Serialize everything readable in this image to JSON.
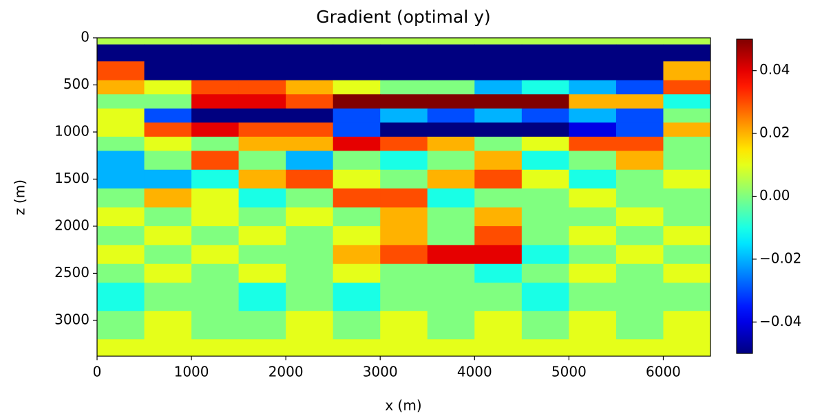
{
  "chart_data": {
    "type": "heatmap",
    "title": "Gradient (optimal y)",
    "xlabel": "x (m)",
    "ylabel": "z (m)",
    "colormap": "jet",
    "xlim": [
      0,
      6500
    ],
    "ylim": [
      3380,
      0
    ],
    "xticks": [
      0,
      1000,
      2000,
      3000,
      4000,
      5000,
      6000
    ],
    "yticks": [
      0,
      500,
      1000,
      1500,
      2000,
      2500,
      3000
    ],
    "x_edges": [
      0,
      500,
      1000,
      1500,
      2000,
      2500,
      3000,
      3500,
      4000,
      4500,
      5000,
      5500,
      6000,
      6500
    ],
    "z_edges": [
      0,
      70,
      250,
      450,
      600,
      750,
      900,
      1050,
      1200,
      1400,
      1600,
      1800,
      2000,
      2200,
      2400,
      2600,
      2900,
      3200,
      3380
    ],
    "values": [
      [
        0.005,
        0.005,
        0.005,
        0.005,
        0.005,
        0.005,
        0.005,
        0.005,
        0.005,
        0.005,
        0.005,
        0.005,
        0.005
      ],
      [
        -0.05,
        -0.05,
        -0.05,
        -0.05,
        -0.05,
        -0.05,
        -0.05,
        -0.05,
        -0.05,
        -0.05,
        -0.05,
        -0.05,
        -0.05
      ],
      [
        0.03,
        -0.05,
        -0.05,
        -0.05,
        -0.05,
        -0.05,
        -0.05,
        -0.05,
        -0.05,
        -0.05,
        -0.05,
        -0.05,
        0.02
      ],
      [
        0.02,
        0.01,
        0.03,
        0.03,
        0.02,
        0.01,
        0,
        0,
        -0.02,
        -0.01,
        -0.02,
        -0.03,
        0.03
      ],
      [
        0,
        0,
        0.04,
        0.04,
        0.03,
        0.05,
        0.05,
        0.05,
        0.05,
        0.05,
        0.02,
        0.02,
        -0.01
      ],
      [
        0.01,
        -0.03,
        -0.05,
        -0.05,
        -0.05,
        -0.03,
        -0.02,
        -0.03,
        -0.02,
        -0.03,
        -0.02,
        -0.03,
        0
      ],
      [
        0.01,
        0.03,
        0.04,
        0.03,
        0.03,
        -0.03,
        -0.05,
        -0.05,
        -0.05,
        -0.05,
        -0.04,
        -0.03,
        0.02
      ],
      [
        0,
        0.01,
        0,
        0.02,
        0.02,
        0.04,
        0.03,
        0.02,
        0,
        0.01,
        0.03,
        0.03,
        0
      ],
      [
        -0.02,
        0,
        0.03,
        0,
        -0.02,
        0,
        -0.01,
        0,
        0.02,
        -0.01,
        0,
        0.02,
        0
      ],
      [
        -0.02,
        -0.02,
        -0.01,
        0.02,
        0.03,
        0.01,
        0,
        0.02,
        0.03,
        0.01,
        -0.01,
        0,
        0.01
      ],
      [
        0,
        0.02,
        0.01,
        -0.01,
        0,
        0.03,
        0.03,
        -0.01,
        0,
        0,
        0.01,
        0,
        0
      ],
      [
        0.01,
        0,
        0.01,
        0,
        0.01,
        0,
        0.02,
        0,
        0.02,
        0,
        0,
        0.01,
        0
      ],
      [
        0,
        0.01,
        0,
        0.01,
        0,
        0.01,
        0.02,
        0,
        0.03,
        0,
        0.01,
        0,
        0.01
      ],
      [
        0.01,
        0,
        0.01,
        0,
        0,
        0.02,
        0.03,
        0.04,
        0.04,
        -0.01,
        0,
        0.01,
        0
      ],
      [
        0,
        0.01,
        0,
        0.01,
        0,
        0.01,
        0,
        0,
        -0.01,
        0,
        0.01,
        0,
        0.01
      ],
      [
        -0.01,
        0,
        0,
        -0.01,
        0,
        -0.01,
        0,
        0,
        0,
        -0.01,
        0,
        0,
        0
      ],
      [
        0,
        0.01,
        0,
        0,
        0.01,
        0,
        0.01,
        0,
        0.01,
        0,
        0.01,
        0,
        0.01
      ],
      [
        0.01,
        0.01,
        0.01,
        0.01,
        0.01,
        0.01,
        0.01,
        0.01,
        0.01,
        0.01,
        0.01,
        0.01,
        0.01
      ]
    ],
    "colorbar": {
      "clim": [
        -0.05,
        0.05
      ],
      "ticks": [
        {
          "value": -0.04,
          "label": "−0.04"
        },
        {
          "value": -0.02,
          "label": "−0.02"
        },
        {
          "value": 0,
          "label": "0.00"
        },
        0.02,
        0.04
      ]
    }
  }
}
